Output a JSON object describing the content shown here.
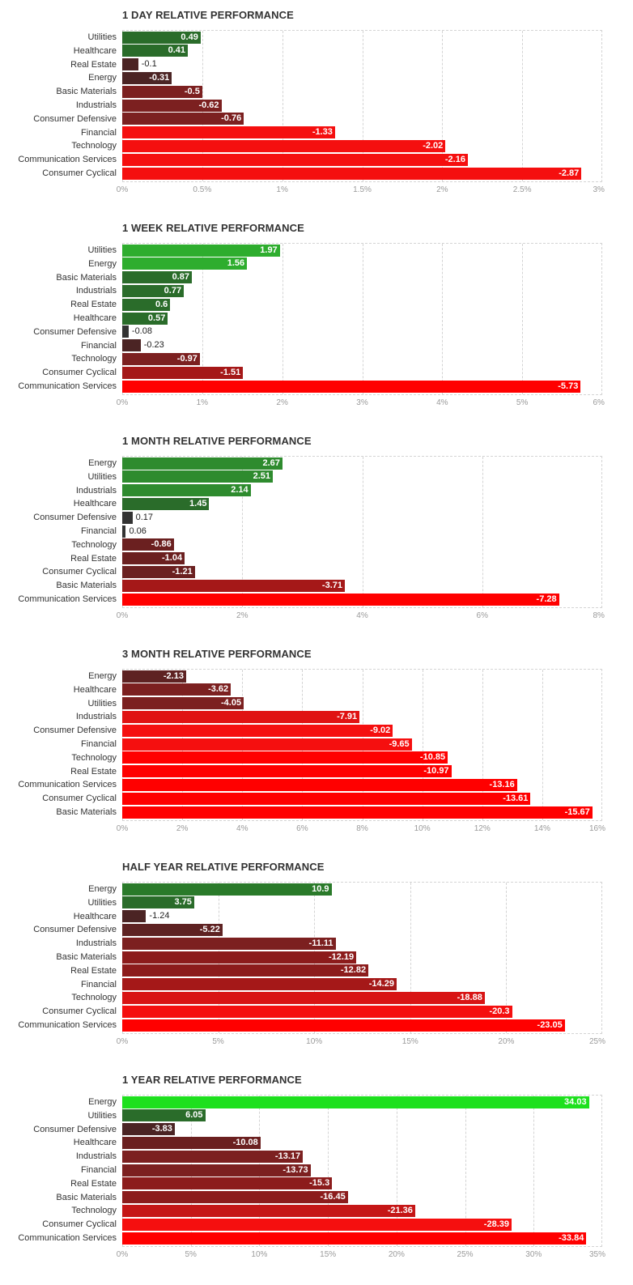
{
  "colors": {
    "bright_green": "#1ee01e",
    "green": "#2ea12e",
    "dark_green": "#2a6c2a",
    "dark_gray": "#333333",
    "dark_maroon": "#4b2424",
    "maroon": "#7c2020",
    "red_mid": "#a51818",
    "red": "#f50f0f",
    "red_bright": "#ff0000"
  },
  "chart_data": [
    {
      "type": "bar",
      "title": "1 DAY RELATIVE PERFORMANCE",
      "categories": [
        "Utilities",
        "Healthcare",
        "Real Estate",
        "Energy",
        "Basic Materials",
        "Industrials",
        "Consumer Defensive",
        "Financial",
        "Technology",
        "Communication Services",
        "Consumer Cyclical"
      ],
      "values": [
        0.49,
        0.41,
        -0.1,
        -0.31,
        -0.5,
        -0.62,
        -0.76,
        -1.33,
        -2.02,
        -2.16,
        -2.87
      ],
      "value_labels": [
        "0.49",
        "0.41",
        "-0.1",
        "-0.31",
        "-0.5",
        "-0.62",
        "-0.76",
        "-1.33",
        "-2.02",
        "-2.16",
        "-2.87"
      ],
      "bar_colors": [
        "#2a6c2a",
        "#2a6c2a",
        "#4b2424",
        "#4b2424",
        "#7c2020",
        "#7c2020",
        "#7c2020",
        "#f50f0f",
        "#f50f0f",
        "#f50f0f",
        "#f50f0f"
      ],
      "xlim": [
        0,
        3
      ],
      "ticks": [
        "0%",
        "0.5%",
        "1%",
        "1.5%",
        "2%",
        "2.5%",
        "3%"
      ],
      "xlabel": "",
      "ylabel": ""
    },
    {
      "type": "bar",
      "title": "1 WEEK RELATIVE PERFORMANCE",
      "categories": [
        "Utilities",
        "Energy",
        "Basic Materials",
        "Industrials",
        "Real Estate",
        "Healthcare",
        "Consumer Defensive",
        "Financial",
        "Technology",
        "Consumer Cyclical",
        "Communication Services"
      ],
      "values": [
        1.97,
        1.56,
        0.87,
        0.77,
        0.6,
        0.57,
        -0.08,
        -0.23,
        -0.97,
        -1.51,
        -5.73
      ],
      "value_labels": [
        "1.97",
        "1.56",
        "0.87",
        "0.77",
        "0.6",
        "0.57",
        "-0.08",
        "-0.23",
        "-0.97",
        "-1.51",
        "-5.73"
      ],
      "bar_colors": [
        "#2ead2e",
        "#2ead2e",
        "#2a6c2a",
        "#2a6c2a",
        "#2a6c2a",
        "#2a6c2a",
        "#333333",
        "#4b2424",
        "#7c2020",
        "#a51818",
        "#ff0000"
      ],
      "xlim": [
        0,
        6
      ],
      "ticks": [
        "0%",
        "1%",
        "2%",
        "3%",
        "4%",
        "5%",
        "6%"
      ],
      "xlabel": "",
      "ylabel": ""
    },
    {
      "type": "bar",
      "title": "1 MONTH RELATIVE PERFORMANCE",
      "categories": [
        "Energy",
        "Utilities",
        "Industrials",
        "Healthcare",
        "Consumer Defensive",
        "Financial",
        "Technology",
        "Real Estate",
        "Consumer Cyclical",
        "Basic Materials",
        "Communication Services"
      ],
      "values": [
        2.67,
        2.51,
        2.14,
        1.45,
        0.17,
        0.06,
        -0.86,
        -1.04,
        -1.21,
        -3.71,
        -7.28
      ],
      "value_labels": [
        "2.67",
        "2.51",
        "2.14",
        "1.45",
        "0.17",
        "0.06",
        "-0.86",
        "-1.04",
        "-1.21",
        "-3.71",
        "-7.28"
      ],
      "bar_colors": [
        "#2e8b2e",
        "#2e8b2e",
        "#2e8b2e",
        "#2a6c2a",
        "#333333",
        "#333333",
        "#6b2020",
        "#6b2020",
        "#6b2020",
        "#a51818",
        "#ff0000"
      ],
      "xlim": [
        0,
        8
      ],
      "ticks": [
        "0%",
        "2%",
        "4%",
        "6%",
        "8%"
      ],
      "xlabel": "",
      "ylabel": ""
    },
    {
      "type": "bar",
      "title": "3 MONTH RELATIVE PERFORMANCE",
      "categories": [
        "Energy",
        "Healthcare",
        "Utilities",
        "Industrials",
        "Consumer Defensive",
        "Financial",
        "Technology",
        "Real Estate",
        "Communication Services",
        "Consumer Cyclical",
        "Basic Materials"
      ],
      "values": [
        -2.13,
        -3.62,
        -4.05,
        -7.91,
        -9.02,
        -9.65,
        -10.85,
        -10.97,
        -13.16,
        -13.61,
        -15.67
      ],
      "value_labels": [
        "-2.13",
        "-3.62",
        "-4.05",
        "-7.91",
        "-9.02",
        "-9.65",
        "-10.85",
        "-10.97",
        "-13.16",
        "-13.61",
        "-15.67"
      ],
      "bar_colors": [
        "#5e2222",
        "#7c2020",
        "#7c2020",
        "#e01212",
        "#f50f0f",
        "#f50f0f",
        "#ff0000",
        "#ff0000",
        "#ff0000",
        "#ff0000",
        "#ff0000"
      ],
      "xlim": [
        0,
        16
      ],
      "ticks": [
        "0%",
        "2%",
        "4%",
        "6%",
        "8%",
        "10%",
        "12%",
        "14%",
        "16%"
      ],
      "xlabel": "",
      "ylabel": ""
    },
    {
      "type": "bar",
      "title": "HALF YEAR RELATIVE PERFORMANCE",
      "categories": [
        "Energy",
        "Utilities",
        "Healthcare",
        "Consumer Defensive",
        "Industrials",
        "Basic Materials",
        "Real Estate",
        "Financial",
        "Technology",
        "Consumer Cyclical",
        "Communication Services"
      ],
      "values": [
        10.9,
        3.75,
        -1.24,
        -5.22,
        -11.11,
        -12.19,
        -12.82,
        -14.29,
        -18.88,
        -20.3,
        -23.05
      ],
      "value_labels": [
        "10.9",
        "3.75",
        "-1.24",
        "-5.22",
        "-11.11",
        "-12.19",
        "-12.82",
        "-14.29",
        "-18.88",
        "-20.3",
        "-23.05"
      ],
      "bar_colors": [
        "#2a7a2a",
        "#2a6c2a",
        "#4b2424",
        "#5e2222",
        "#7c2020",
        "#8c1c1c",
        "#8c1c1c",
        "#a51818",
        "#d81414",
        "#f50f0f",
        "#ff0000"
      ],
      "xlim": [
        0,
        25
      ],
      "ticks": [
        "0%",
        "5%",
        "10%",
        "15%",
        "20%",
        "25%"
      ],
      "xlabel": "",
      "ylabel": ""
    },
    {
      "type": "bar",
      "title": "1 YEAR RELATIVE PERFORMANCE",
      "categories": [
        "Energy",
        "Utilities",
        "Consumer Defensive",
        "Healthcare",
        "Industrials",
        "Financial",
        "Real Estate",
        "Basic Materials",
        "Technology",
        "Consumer Cyclical",
        "Communication Services"
      ],
      "values": [
        34.03,
        6.05,
        -3.83,
        -10.08,
        -13.17,
        -13.73,
        -15.3,
        -16.45,
        -21.36,
        -28.39,
        -33.84
      ],
      "value_labels": [
        "34.03",
        "6.05",
        "-3.83",
        "-10.08",
        "-13.17",
        "-13.73",
        "-15.3",
        "-16.45",
        "-21.36",
        "-28.39",
        "-33.84"
      ],
      "bar_colors": [
        "#1ee01e",
        "#2a6c2a",
        "#4b2424",
        "#6b2020",
        "#7c2020",
        "#7c2020",
        "#8c1c1c",
        "#8c1c1c",
        "#c51616",
        "#f50f0f",
        "#ff0000"
      ],
      "xlim": [
        0,
        35
      ],
      "ticks": [
        "0%",
        "5%",
        "10%",
        "15%",
        "20%",
        "25%",
        "30%",
        "35%"
      ],
      "xlabel": "",
      "ylabel": ""
    }
  ]
}
